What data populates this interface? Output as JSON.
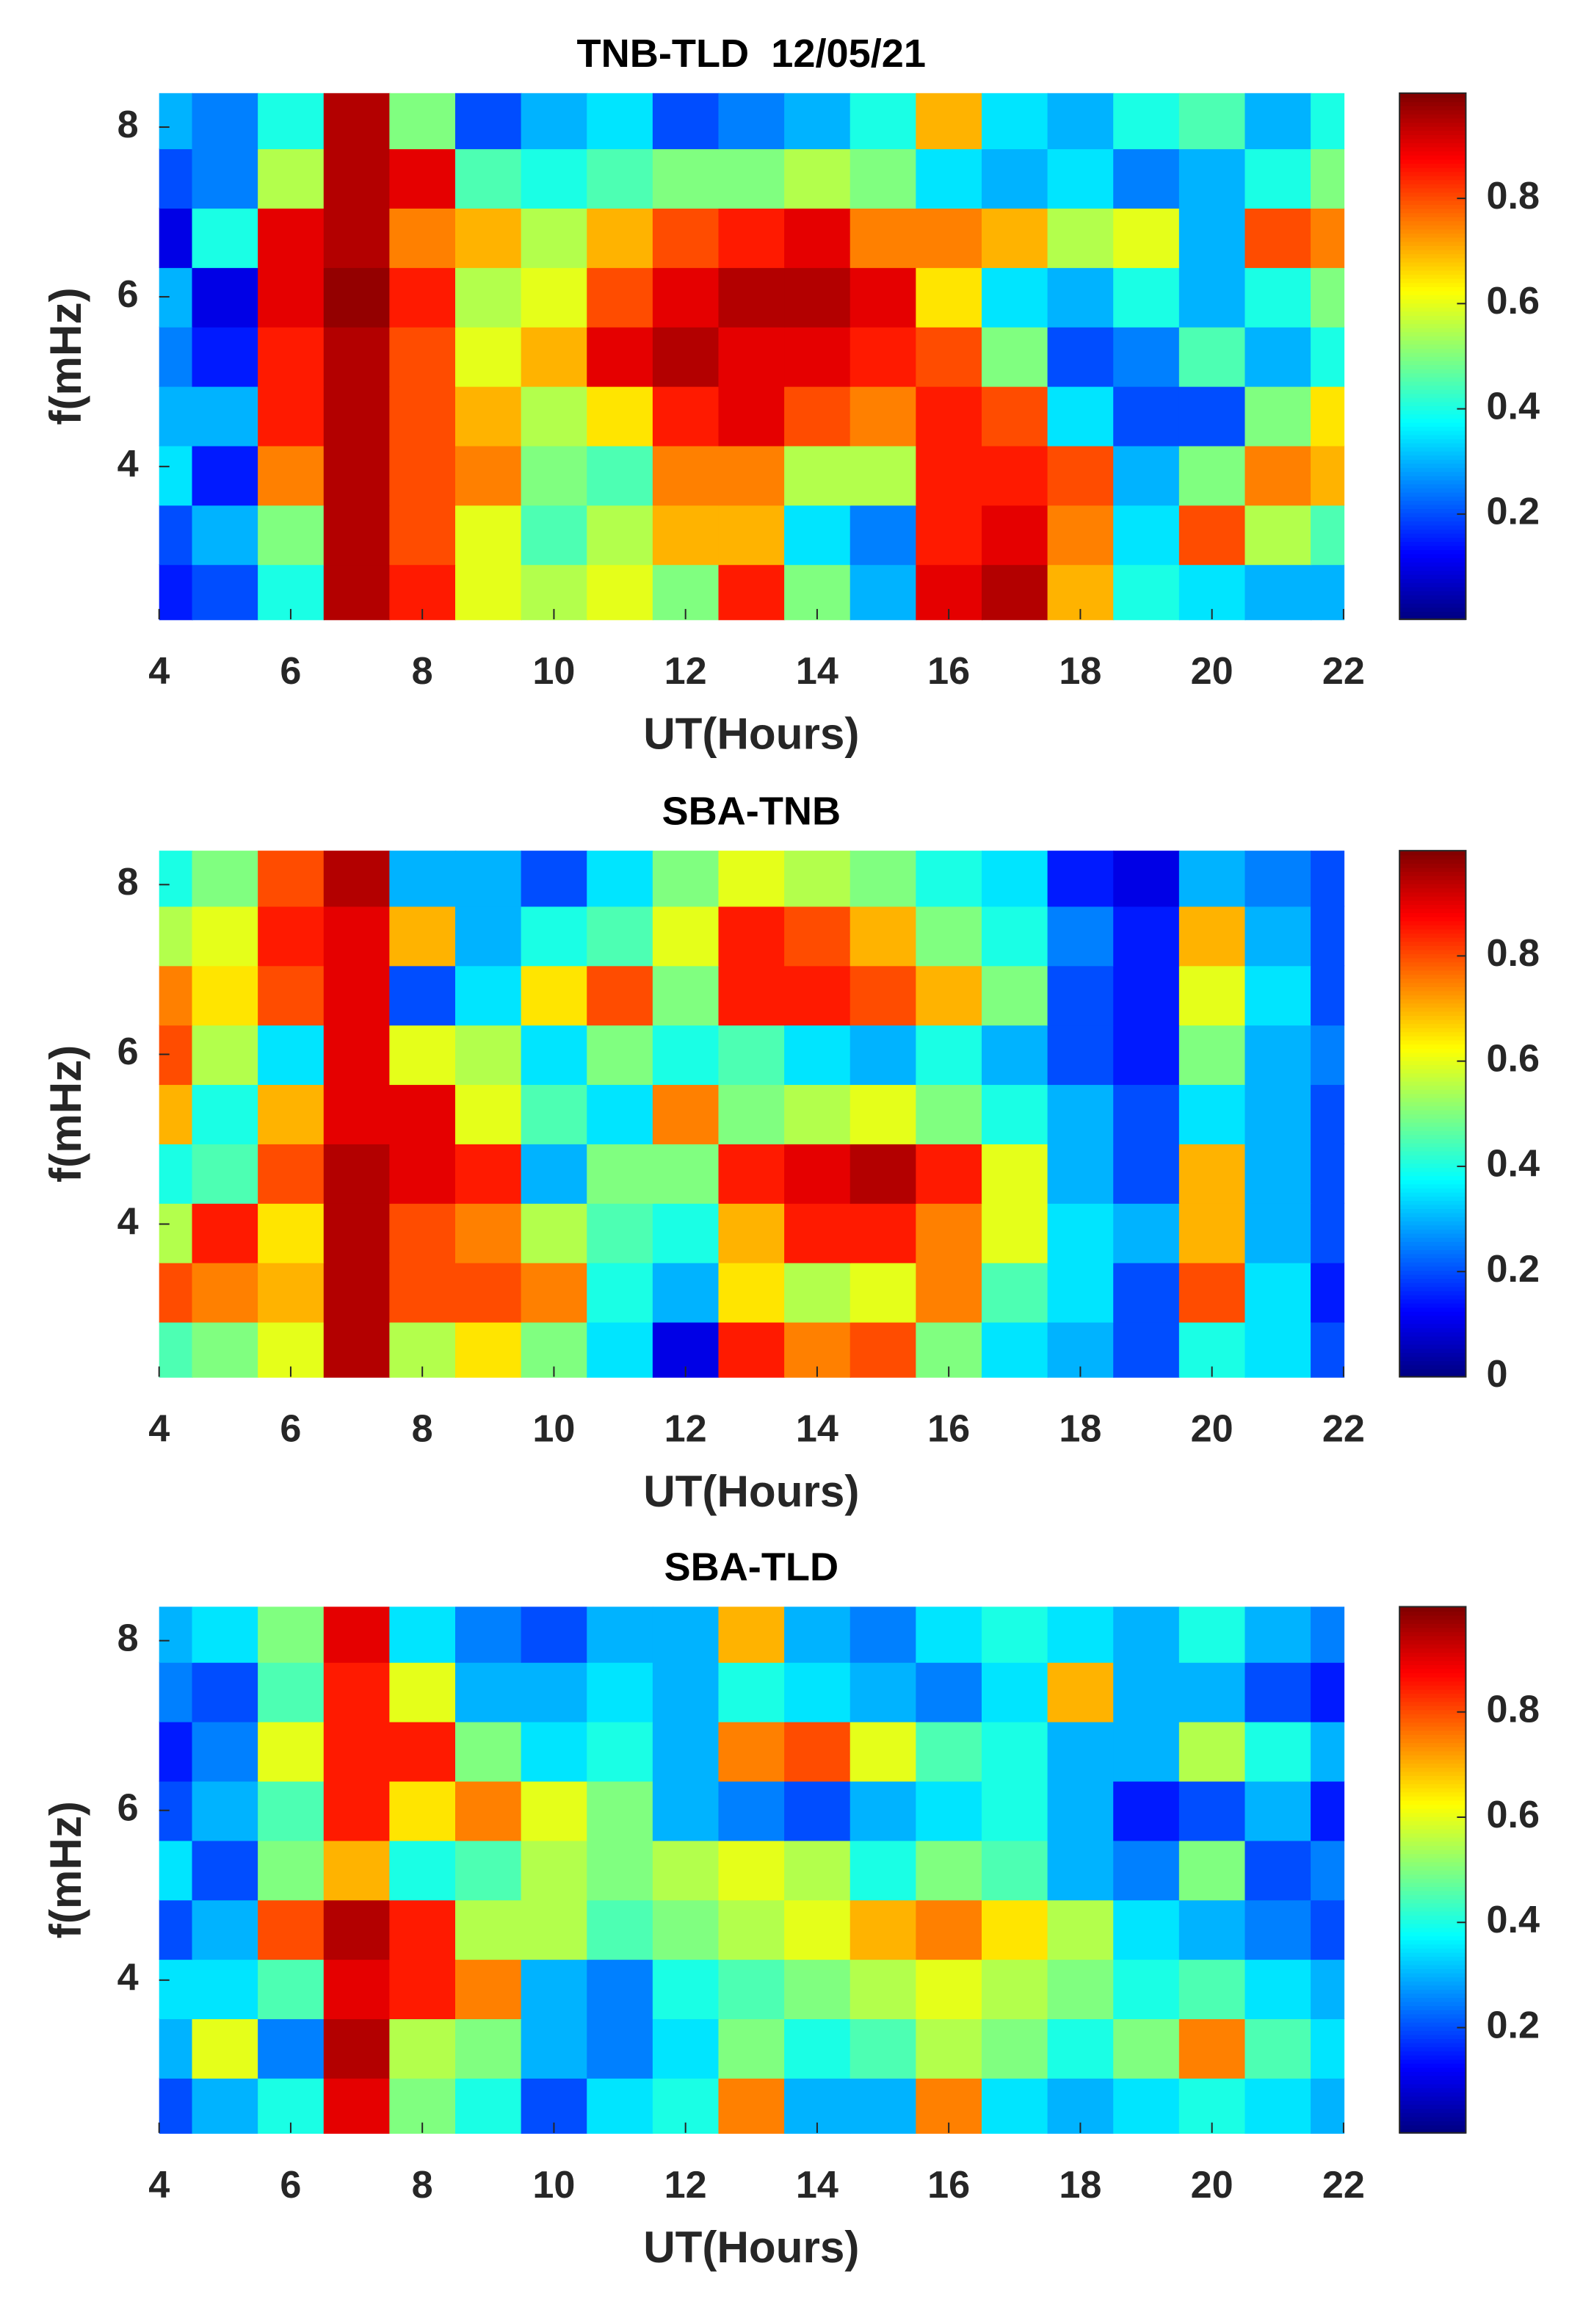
{
  "chart_data": [
    {
      "type": "heatmap",
      "title": "TNB-TLD  12/05/21",
      "xlabel": "UT(Hours)",
      "ylabel": "f(mHz)",
      "x": [
        4,
        5,
        6,
        7,
        8,
        9,
        10,
        11,
        12,
        13,
        14,
        15,
        16,
        17,
        18,
        19,
        20,
        21,
        22
      ],
      "y": [
        2.5,
        3.2,
        3.9,
        4.6,
        5.3,
        6.0,
        6.7,
        7.4,
        8.1
      ],
      "z": [
        [
          0.15,
          0.2,
          0.4,
          0.95,
          0.85,
          0.6,
          0.55,
          0.6,
          0.5,
          0.85,
          0.5,
          0.3,
          0.9,
          0.95,
          0.7,
          0.4,
          0.35,
          0.3,
          0.3
        ],
        [
          0.2,
          0.3,
          0.5,
          0.95,
          0.8,
          0.6,
          0.45,
          0.55,
          0.7,
          0.7,
          0.35,
          0.25,
          0.85,
          0.9,
          0.75,
          0.35,
          0.8,
          0.55,
          0.45
        ],
        [
          0.35,
          0.15,
          0.75,
          0.95,
          0.8,
          0.75,
          0.5,
          0.45,
          0.75,
          0.75,
          0.55,
          0.55,
          0.85,
          0.85,
          0.8,
          0.3,
          0.5,
          0.75,
          0.7
        ],
        [
          0.3,
          0.3,
          0.85,
          0.95,
          0.8,
          0.7,
          0.55,
          0.65,
          0.85,
          0.9,
          0.8,
          0.75,
          0.85,
          0.8,
          0.35,
          0.2,
          0.2,
          0.5,
          0.65
        ],
        [
          0.25,
          0.15,
          0.85,
          0.95,
          0.8,
          0.6,
          0.7,
          0.9,
          0.95,
          0.9,
          0.9,
          0.85,
          0.8,
          0.5,
          0.2,
          0.25,
          0.45,
          0.3,
          0.4
        ],
        [
          0.3,
          0.1,
          0.9,
          0.98,
          0.85,
          0.55,
          0.6,
          0.8,
          0.9,
          0.95,
          0.95,
          0.9,
          0.65,
          0.35,
          0.3,
          0.4,
          0.3,
          0.4,
          0.5
        ],
        [
          0.1,
          0.4,
          0.9,
          0.95,
          0.75,
          0.7,
          0.55,
          0.7,
          0.8,
          0.85,
          0.9,
          0.75,
          0.75,
          0.7,
          0.55,
          0.6,
          0.3,
          0.8,
          0.75
        ],
        [
          0.2,
          0.25,
          0.55,
          0.95,
          0.9,
          0.45,
          0.4,
          0.45,
          0.5,
          0.5,
          0.55,
          0.5,
          0.35,
          0.3,
          0.35,
          0.25,
          0.3,
          0.4,
          0.5
        ],
        [
          0.3,
          0.25,
          0.4,
          0.95,
          0.5,
          0.2,
          0.3,
          0.35,
          0.2,
          0.25,
          0.3,
          0.4,
          0.7,
          0.35,
          0.3,
          0.4,
          0.45,
          0.3,
          0.4
        ]
      ],
      "xlim": [
        4,
        22
      ],
      "ylim": [
        2.2,
        8.4
      ],
      "xticks": [
        4,
        6,
        8,
        10,
        12,
        14,
        16,
        18,
        20,
        22
      ],
      "yticks": [
        4,
        6,
        8
      ],
      "clim": [
        0,
        1
      ],
      "cticks": [
        0.2,
        0.4,
        0.6,
        0.8
      ],
      "colormap": "jet"
    },
    {
      "type": "heatmap",
      "title": "SBA-TNB",
      "xlabel": "UT(Hours)",
      "ylabel": "f(mHz)",
      "x": [
        4,
        5,
        6,
        7,
        8,
        9,
        10,
        11,
        12,
        13,
        14,
        15,
        16,
        17,
        18,
        19,
        20,
        21,
        22
      ],
      "y": [
        2.5,
        3.2,
        3.9,
        4.6,
        5.3,
        6.0,
        6.7,
        7.4,
        8.1
      ],
      "z": [
        [
          0.45,
          0.5,
          0.6,
          0.95,
          0.55,
          0.65,
          0.5,
          0.35,
          0.1,
          0.85,
          0.75,
          0.8,
          0.5,
          0.35,
          0.3,
          0.2,
          0.4,
          0.35,
          0.2
        ],
        [
          0.8,
          0.75,
          0.7,
          0.95,
          0.8,
          0.8,
          0.75,
          0.4,
          0.3,
          0.65,
          0.55,
          0.6,
          0.75,
          0.45,
          0.35,
          0.2,
          0.8,
          0.35,
          0.15
        ],
        [
          0.55,
          0.85,
          0.65,
          0.95,
          0.8,
          0.75,
          0.55,
          0.45,
          0.4,
          0.7,
          0.85,
          0.85,
          0.75,
          0.6,
          0.35,
          0.3,
          0.7,
          0.3,
          0.2
        ],
        [
          0.4,
          0.45,
          0.8,
          0.95,
          0.9,
          0.85,
          0.3,
          0.5,
          0.5,
          0.85,
          0.9,
          0.95,
          0.85,
          0.6,
          0.3,
          0.2,
          0.7,
          0.3,
          0.2
        ],
        [
          0.7,
          0.4,
          0.7,
          0.9,
          0.9,
          0.6,
          0.45,
          0.35,
          0.75,
          0.5,
          0.55,
          0.6,
          0.5,
          0.4,
          0.3,
          0.2,
          0.35,
          0.3,
          0.2
        ],
        [
          0.8,
          0.55,
          0.35,
          0.9,
          0.6,
          0.55,
          0.35,
          0.5,
          0.4,
          0.45,
          0.35,
          0.3,
          0.4,
          0.3,
          0.2,
          0.15,
          0.5,
          0.3,
          0.25
        ],
        [
          0.75,
          0.65,
          0.8,
          0.9,
          0.2,
          0.35,
          0.65,
          0.8,
          0.5,
          0.85,
          0.85,
          0.8,
          0.7,
          0.5,
          0.2,
          0.15,
          0.6,
          0.35,
          0.2
        ],
        [
          0.55,
          0.6,
          0.85,
          0.9,
          0.7,
          0.3,
          0.4,
          0.45,
          0.6,
          0.85,
          0.8,
          0.7,
          0.5,
          0.4,
          0.25,
          0.15,
          0.7,
          0.3,
          0.2
        ],
        [
          0.4,
          0.5,
          0.8,
          0.95,
          0.3,
          0.3,
          0.2,
          0.35,
          0.5,
          0.6,
          0.55,
          0.5,
          0.4,
          0.35,
          0.15,
          0.1,
          0.3,
          0.25,
          0.2
        ]
      ],
      "xlim": [
        4,
        22
      ],
      "ylim": [
        2.2,
        8.4
      ],
      "xticks": [
        4,
        6,
        8,
        10,
        12,
        14,
        16,
        18,
        20,
        22
      ],
      "yticks": [
        4,
        6,
        8
      ],
      "clim": [
        0,
        1
      ],
      "cticks": [
        0,
        0.2,
        0.4,
        0.6,
        0.8
      ],
      "colormap": "jet"
    },
    {
      "type": "heatmap",
      "title": "SBA-TLD",
      "xlabel": "UT(Hours)",
      "ylabel": "f(mHz)",
      "x": [
        4,
        5,
        6,
        7,
        8,
        9,
        10,
        11,
        12,
        13,
        14,
        15,
        16,
        17,
        18,
        19,
        20,
        21,
        22
      ],
      "y": [
        2.5,
        3.2,
        3.9,
        4.6,
        5.3,
        6.0,
        6.7,
        7.4,
        8.1
      ],
      "z": [
        [
          0.2,
          0.3,
          0.4,
          0.9,
          0.5,
          0.4,
          0.2,
          0.35,
          0.4,
          0.75,
          0.3,
          0.3,
          0.75,
          0.35,
          0.3,
          0.35,
          0.4,
          0.35,
          0.3
        ],
        [
          0.3,
          0.6,
          0.25,
          0.95,
          0.55,
          0.5,
          0.3,
          0.25,
          0.35,
          0.5,
          0.4,
          0.45,
          0.55,
          0.5,
          0.4,
          0.5,
          0.75,
          0.45,
          0.35
        ],
        [
          0.35,
          0.35,
          0.45,
          0.9,
          0.85,
          0.75,
          0.3,
          0.25,
          0.4,
          0.45,
          0.5,
          0.55,
          0.6,
          0.55,
          0.5,
          0.4,
          0.45,
          0.35,
          0.3
        ],
        [
          0.2,
          0.3,
          0.8,
          0.95,
          0.85,
          0.55,
          0.55,
          0.45,
          0.5,
          0.55,
          0.6,
          0.7,
          0.75,
          0.65,
          0.55,
          0.35,
          0.3,
          0.25,
          0.2
        ],
        [
          0.35,
          0.2,
          0.5,
          0.7,
          0.4,
          0.45,
          0.55,
          0.5,
          0.55,
          0.6,
          0.55,
          0.4,
          0.5,
          0.45,
          0.3,
          0.25,
          0.5,
          0.2,
          0.25
        ],
        [
          0.2,
          0.3,
          0.45,
          0.85,
          0.65,
          0.75,
          0.6,
          0.5,
          0.3,
          0.25,
          0.2,
          0.3,
          0.35,
          0.4,
          0.3,
          0.15,
          0.2,
          0.3,
          0.15
        ],
        [
          0.15,
          0.25,
          0.6,
          0.85,
          0.85,
          0.5,
          0.35,
          0.4,
          0.3,
          0.75,
          0.8,
          0.6,
          0.45,
          0.4,
          0.3,
          0.3,
          0.55,
          0.4,
          0.3
        ],
        [
          0.25,
          0.2,
          0.45,
          0.85,
          0.6,
          0.3,
          0.3,
          0.35,
          0.3,
          0.4,
          0.35,
          0.3,
          0.25,
          0.35,
          0.7,
          0.3,
          0.3,
          0.2,
          0.15
        ],
        [
          0.3,
          0.35,
          0.5,
          0.9,
          0.35,
          0.25,
          0.2,
          0.3,
          0.3,
          0.7,
          0.3,
          0.25,
          0.35,
          0.4,
          0.35,
          0.3,
          0.4,
          0.3,
          0.25
        ]
      ],
      "xlim": [
        4,
        22
      ],
      "ylim": [
        2.2,
        8.4
      ],
      "xticks": [
        4,
        6,
        8,
        10,
        12,
        14,
        16,
        18,
        20,
        22
      ],
      "yticks": [
        4,
        6,
        8
      ],
      "clim": [
        0,
        1
      ],
      "cticks": [
        0.2,
        0.4,
        0.6,
        0.8
      ],
      "colormap": "jet"
    }
  ]
}
